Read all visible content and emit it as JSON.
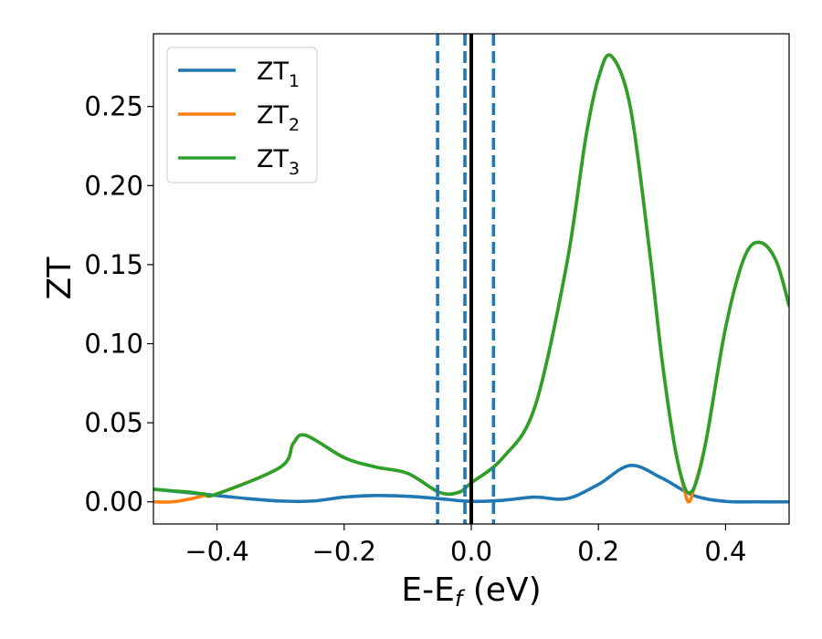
{
  "chart_data": {
    "type": "line",
    "title": "",
    "xlabel": "E-E",
    "xlabel_sub": "f",
    "xlabel_unit": " (eV)",
    "ylabel": "ZT",
    "xlim": [
      -0.5,
      0.5
    ],
    "ylim": [
      -0.014,
      0.296
    ],
    "x_ticks": [
      -0.4,
      -0.2,
      0.0,
      0.2,
      0.4
    ],
    "x_tick_labels": [
      "−0.4",
      "−0.2",
      "0.0",
      "0.2",
      "0.4"
    ],
    "y_ticks": [
      0.0,
      0.05,
      0.1,
      0.15,
      0.2,
      0.25
    ],
    "y_tick_labels": [
      "0.00",
      "0.05",
      "0.10",
      "0.15",
      "0.20",
      "0.25"
    ],
    "grid": false,
    "legend_position": "top-left",
    "series": [
      {
        "name": "ZT",
        "sub": "1",
        "color": "#1f77b4",
        "x": [
          -0.5,
          -0.45,
          -0.4,
          -0.35,
          -0.3,
          -0.25,
          -0.2,
          -0.15,
          -0.1,
          -0.05,
          0.0,
          0.05,
          0.1,
          0.15,
          0.2,
          0.25,
          0.3,
          0.35,
          0.4,
          0.45,
          0.5
        ],
        "y": [
          0.008,
          0.006,
          0.004,
          0.002,
          0.0005,
          0.0005,
          0.003,
          0.004,
          0.0035,
          0.002,
          0.0003,
          0.001,
          0.003,
          0.002,
          0.011,
          0.023,
          0.015,
          0.004,
          0.0003,
          0.0,
          0.0
        ]
      },
      {
        "name": "ZT",
        "sub": "2",
        "color": "#ff7f0e",
        "x": [
          -0.5,
          -0.47,
          -0.44,
          -0.42,
          -0.4,
          -0.3,
          -0.28,
          -0.26,
          -0.2,
          -0.15,
          -0.1,
          -0.05,
          -0.02,
          0.0,
          0.05,
          0.1,
          0.15,
          0.18,
          0.2,
          0.22,
          0.25,
          0.28,
          0.3,
          0.32,
          0.335,
          0.342,
          0.35,
          0.37,
          0.4,
          0.43,
          0.455,
          0.48,
          0.5
        ],
        "y": [
          0.0,
          0.0,
          0.002,
          0.004,
          0.005,
          0.022,
          0.037,
          0.042,
          0.028,
          0.022,
          0.018,
          0.006,
          0.006,
          0.012,
          0.028,
          0.06,
          0.15,
          0.23,
          0.268,
          0.282,
          0.25,
          0.16,
          0.09,
          0.035,
          0.008,
          0.0,
          0.008,
          0.04,
          0.11,
          0.155,
          0.164,
          0.152,
          0.124
        ]
      },
      {
        "name": "ZT",
        "sub": "3",
        "color": "#2ca02c",
        "x": [
          -0.5,
          -0.47,
          -0.44,
          -0.42,
          -0.4,
          -0.3,
          -0.28,
          -0.26,
          -0.2,
          -0.15,
          -0.1,
          -0.05,
          -0.02,
          0.0,
          0.05,
          0.1,
          0.15,
          0.18,
          0.2,
          0.22,
          0.25,
          0.28,
          0.3,
          0.32,
          0.335,
          0.345,
          0.355,
          0.37,
          0.4,
          0.43,
          0.455,
          0.48,
          0.5
        ],
        "y": [
          0.008,
          0.007,
          0.006,
          0.005,
          0.005,
          0.022,
          0.037,
          0.042,
          0.028,
          0.022,
          0.018,
          0.006,
          0.006,
          0.012,
          0.028,
          0.06,
          0.15,
          0.23,
          0.268,
          0.282,
          0.25,
          0.16,
          0.09,
          0.035,
          0.01,
          0.006,
          0.014,
          0.04,
          0.11,
          0.155,
          0.164,
          0.152,
          0.124
        ]
      }
    ],
    "vlines": [
      {
        "x": -0.053,
        "style": "dashed",
        "color": "#1f77b4"
      },
      {
        "x": -0.01,
        "style": "dashed",
        "color": "#1f77b4"
      },
      {
        "x": 0.0,
        "style": "solid",
        "color": "#000000"
      },
      {
        "x": 0.035,
        "style": "dashed",
        "color": "#1f77b4"
      }
    ]
  }
}
